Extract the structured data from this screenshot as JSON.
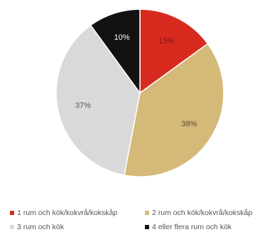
{
  "chart_data": {
    "type": "pie",
    "categories": [
      "1 rum och kök/kokvrå/kokskåp",
      "2 rum och kök/kokvrå/kokskåp",
      "3 rum och kök",
      "4 eller flera rum och kök"
    ],
    "values": [
      15,
      38,
      37,
      10
    ],
    "labels": [
      "15%",
      "38%",
      "37%",
      "10%"
    ],
    "colors": [
      "#d92a20",
      "#d4b978",
      "#d9d9d9",
      "#121212"
    ],
    "label_colors": [
      "#7a1712",
      "#5a4b2b",
      "#555555",
      "#ffffff"
    ],
    "start_angle_deg": 0,
    "direction": "clockwise",
    "legend_position": "bottom"
  }
}
